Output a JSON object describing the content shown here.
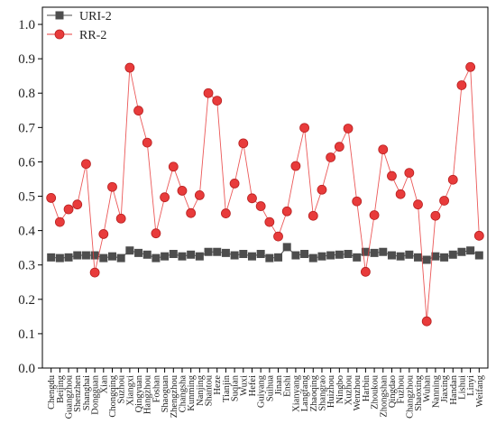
{
  "chart_data": {
    "type": "line",
    "ylim": [
      0,
      1.05
    ],
    "yticks": [
      "0.0",
      "0.1",
      "0.2",
      "0.3",
      "0.4",
      "0.5",
      "0.6",
      "0.7",
      "0.8",
      "0.9",
      "1.0"
    ],
    "ytick_values": [
      0,
      0.1,
      0.2,
      0.3,
      0.4,
      0.5,
      0.6,
      0.7,
      0.8,
      0.9,
      1.0
    ],
    "legend_position": "top-left",
    "categories": [
      "Chengdu",
      "Beijing",
      "Guangzhou",
      "Shenzhen",
      "Shanghai",
      "Dongguan",
      "Xian",
      "Chongqing",
      "Suzhou",
      "Xiangxi",
      "Qingyuan",
      "Hangzhou",
      "Foshan",
      "Shaoguan",
      "Zhengzhou",
      "Changsha",
      "Kunming",
      "Nanjing",
      "Shantou",
      "Heze",
      "Tianjin",
      "Suqian",
      "Wuxi",
      "Hefei",
      "Guiyang",
      "Suihua",
      "Jinan",
      "Enshi",
      "Xianyang",
      "Langfang",
      "Zhaoqing",
      "Shangrao",
      "Huizhou",
      "Ningbo",
      "Xuzhou",
      "Wenzhou",
      "Harbin",
      "Zhoukou",
      "Zhongshan",
      "Qingdao",
      "Fuzhou",
      "Changzhou",
      "Shaoxing",
      "Wuhan",
      "Nanning",
      "Jiaxing",
      "Handan",
      "Lishui",
      "Linyi",
      "Weifang"
    ],
    "series": [
      {
        "name": "URI-2",
        "color": "#4d4d4d",
        "marker": "square",
        "values": [
          0.322,
          0.32,
          0.322,
          0.328,
          0.328,
          0.328,
          0.32,
          0.325,
          0.32,
          0.342,
          0.335,
          0.33,
          0.32,
          0.325,
          0.332,
          0.325,
          0.33,
          0.325,
          0.338,
          0.338,
          0.335,
          0.328,
          0.332,
          0.325,
          0.332,
          0.32,
          0.322,
          0.352,
          0.328,
          0.332,
          0.32,
          0.325,
          0.328,
          0.33,
          0.332,
          0.322,
          0.338,
          0.335,
          0.338,
          0.328,
          0.325,
          0.33,
          0.322,
          0.315,
          0.325,
          0.322,
          0.33,
          0.338,
          0.342,
          0.328
        ]
      },
      {
        "name": "RR-2",
        "color": "#e83b3b",
        "marker": "circle",
        "values": [
          0.495,
          0.425,
          0.462,
          0.476,
          0.594,
          0.278,
          0.39,
          0.527,
          0.435,
          0.874,
          0.749,
          0.656,
          0.392,
          0.497,
          0.586,
          0.516,
          0.451,
          0.503,
          0.8,
          0.778,
          0.45,
          0.537,
          0.654,
          0.494,
          0.471,
          0.425,
          0.383,
          0.456,
          0.588,
          0.699,
          0.443,
          0.519,
          0.613,
          0.644,
          0.697,
          0.485,
          0.28,
          0.445,
          0.636,
          0.559,
          0.506,
          0.568,
          0.476,
          0.136,
          0.443,
          0.487,
          0.548,
          0.823,
          0.876,
          0.385
        ]
      }
    ]
  }
}
